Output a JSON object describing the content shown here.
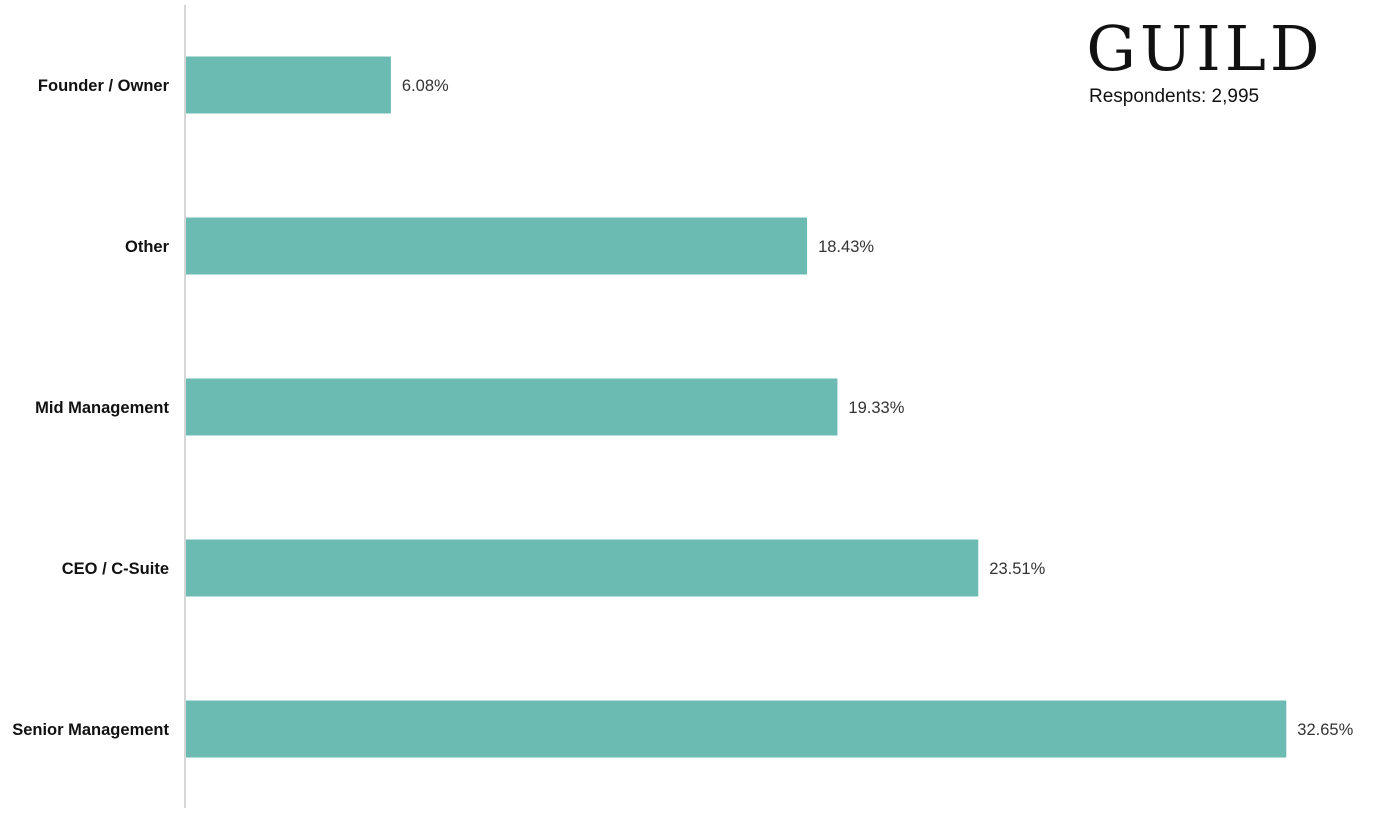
{
  "brand": {
    "logo": "GUILD",
    "respondents": "Respondents: 2,995"
  },
  "colors": {
    "bar": "#6bbbb3",
    "axis": "#c8c8c8",
    "category_text": "#111111",
    "value_text": "#333333"
  },
  "chart_data": {
    "type": "bar",
    "orientation": "horizontal",
    "categories": [
      "Founder / Owner",
      "Other",
      "Mid Management",
      "CEO / C-Suite",
      "Senior Management"
    ],
    "values": [
      6.08,
      18.43,
      19.33,
      23.51,
      32.65
    ],
    "data_labels": [
      "6.08%",
      "18.43%",
      "19.33%",
      "23.51%",
      "32.65%"
    ],
    "unit": "%",
    "title": "",
    "xlabel": "",
    "ylabel": "",
    "grid": false,
    "legend": "none"
  }
}
